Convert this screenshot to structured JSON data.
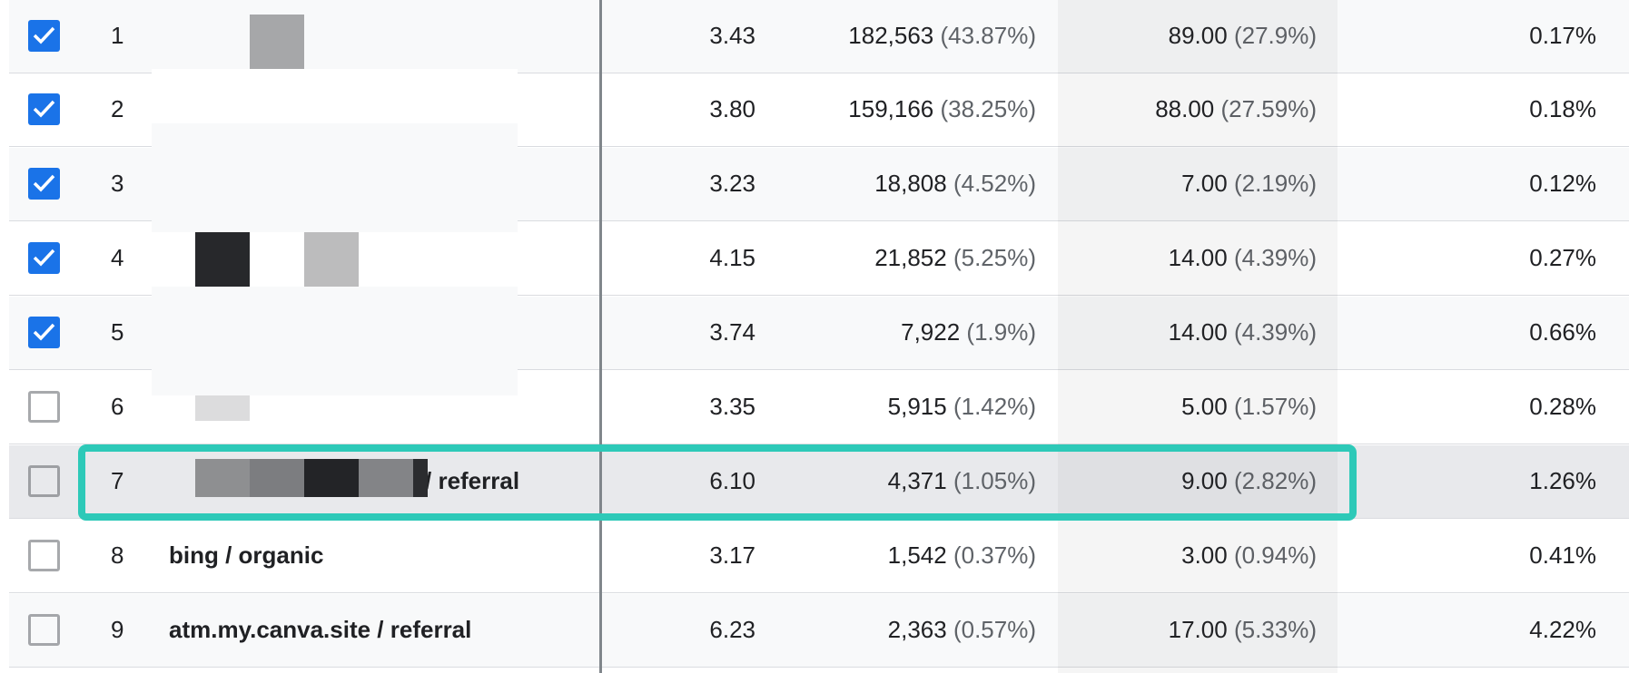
{
  "rows": [
    {
      "idx": "1",
      "checked": true,
      "source": "",
      "c1": "3.43",
      "c2": "182,563",
      "c2p": "(43.87%)",
      "c3": "89.00",
      "c3p": "(27.9%)",
      "c4": "0.17%"
    },
    {
      "idx": "2",
      "checked": true,
      "source": "",
      "c1": "3.80",
      "c2": "159,166",
      "c2p": "(38.25%)",
      "c3": "88.00",
      "c3p": "(27.59%)",
      "c4": "0.18%"
    },
    {
      "idx": "3",
      "checked": true,
      "source": "",
      "c1": "3.23",
      "c2": "18,808",
      "c2p": "(4.52%)",
      "c3": "7.00",
      "c3p": "(2.19%)",
      "c4": "0.12%"
    },
    {
      "idx": "4",
      "checked": true,
      "source": "",
      "c1": "4.15",
      "c2": "21,852",
      "c2p": "(5.25%)",
      "c3": "14.00",
      "c3p": "(4.39%)",
      "c4": "0.27%"
    },
    {
      "idx": "5",
      "checked": true,
      "source": "",
      "c1": "3.74",
      "c2": "7,922",
      "c2p": "(1.9%)",
      "c3": "14.00",
      "c3p": "(4.39%)",
      "c4": "0.66%"
    },
    {
      "idx": "6",
      "checked": false,
      "source": "",
      "c1": "3.35",
      "c2": "5,915",
      "c2p": "(1.42%)",
      "c3": "5.00",
      "c3p": "(1.57%)",
      "c4": "0.28%"
    },
    {
      "idx": "7",
      "checked": false,
      "source": "/ referral",
      "c1": "6.10",
      "c2": "4,371",
      "c2p": "(1.05%)",
      "c3": "9.00",
      "c3p": "(2.82%)",
      "c4": "1.26%"
    },
    {
      "idx": "8",
      "checked": false,
      "source": "bing / organic",
      "c1": "3.17",
      "c2": "1,542",
      "c2p": "(0.37%)",
      "c3": "3.00",
      "c3p": "(0.94%)",
      "c4": "0.41%"
    },
    {
      "idx": "9",
      "checked": false,
      "source": "atm.my.canva.site / referral",
      "c1": "6.23",
      "c2": "2,363",
      "c2p": "(0.57%)",
      "c3": "17.00",
      "c3p": "(5.33%)",
      "c4": "4.22%"
    }
  ],
  "colors": {
    "checkbox_on": "#1a73e8",
    "highlight": "#2dc9b8"
  }
}
